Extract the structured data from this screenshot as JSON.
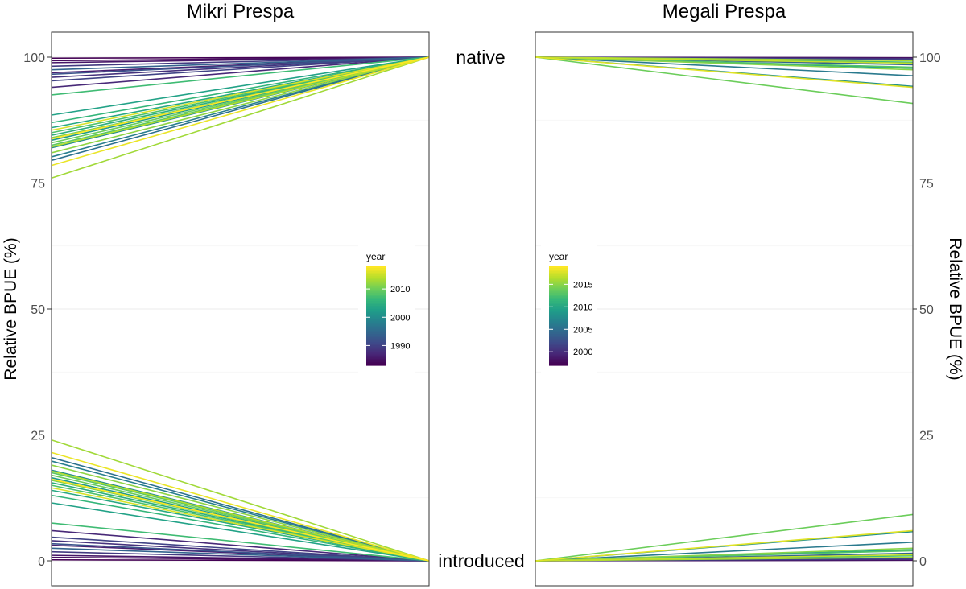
{
  "chart_data": [
    {
      "type": "line",
      "title": "Mikri Prespa",
      "ylabel": "Relative BPUE (%)",
      "ylim": [
        0,
        100
      ],
      "y_ticks": [
        "0",
        "25",
        "50",
        "75",
        "100"
      ],
      "x_categories": [
        "native",
        "introduced"
      ],
      "legend": {
        "title": "year",
        "ticks": [
          "2010",
          "2000",
          "1990"
        ],
        "range": [
          1983,
          2018
        ],
        "position": "center-right"
      },
      "series": [
        {
          "year": 1983,
          "native_start": 99.8,
          "introduced_start": 0.2
        },
        {
          "year": 1984,
          "native_start": 99.3,
          "introduced_start": 0.7
        },
        {
          "year": 1985,
          "native_start": 98.9,
          "introduced_start": 1.1
        },
        {
          "year": 1986,
          "native_start": 96.9,
          "introduced_start": 3.1
        },
        {
          "year": 1987,
          "native_start": 94.0,
          "introduced_start": 6.0
        },
        {
          "year": 1988,
          "native_start": 96.0,
          "introduced_start": 4.0
        },
        {
          "year": 1989,
          "native_start": 98.2,
          "introduced_start": 1.8
        },
        {
          "year": 1990,
          "native_start": 95.3,
          "introduced_start": 4.7
        },
        {
          "year": 1992,
          "native_start": 96.6,
          "introduced_start": 3.4
        },
        {
          "year": 1994,
          "native_start": 97.5,
          "introduced_start": 2.5
        },
        {
          "year": 1996,
          "native_start": 79.5,
          "introduced_start": 20.5
        },
        {
          "year": 1998,
          "native_start": 80.2,
          "introduced_start": 19.8
        },
        {
          "year": 2000,
          "native_start": 82.0,
          "introduced_start": 18.0
        },
        {
          "year": 2002,
          "native_start": 83.5,
          "introduced_start": 16.5
        },
        {
          "year": 2003,
          "native_start": 88.5,
          "introduced_start": 11.5
        },
        {
          "year": 2004,
          "native_start": 86.0,
          "introduced_start": 14.0
        },
        {
          "year": 2005,
          "native_start": 84.5,
          "introduced_start": 15.5
        },
        {
          "year": 2006,
          "native_start": 87.0,
          "introduced_start": 13.0
        },
        {
          "year": 2007,
          "native_start": 92.5,
          "introduced_start": 7.5
        },
        {
          "year": 2008,
          "native_start": 85.0,
          "introduced_start": 15.0
        },
        {
          "year": 2009,
          "native_start": 82.5,
          "introduced_start": 17.5
        },
        {
          "year": 2010,
          "native_start": 83.0,
          "introduced_start": 17.0
        },
        {
          "year": 2011,
          "native_start": 84.0,
          "introduced_start": 16.0
        },
        {
          "year": 2012,
          "native_start": 81.0,
          "introduced_start": 19.0
        },
        {
          "year": 2013,
          "native_start": 76.0,
          "introduced_start": 24.0
        },
        {
          "year": 2014,
          "native_start": 82.2,
          "introduced_start": 17.8
        },
        {
          "year": 2016,
          "native_start": 85.5,
          "introduced_start": 14.5
        },
        {
          "year": 2017,
          "native_start": 78.5,
          "introduced_start": 21.5
        },
        {
          "year": 2018,
          "native_start": 83.8,
          "introduced_start": 16.2
        }
      ]
    },
    {
      "type": "line",
      "title": "Megali Prespa",
      "ylabel": "Relative BPUE (%)",
      "ylim": [
        0,
        100
      ],
      "y_ticks": [
        "0",
        "25",
        "50",
        "75",
        "100"
      ],
      "x_categories": [
        "native",
        "introduced"
      ],
      "legend": {
        "title": "year",
        "ticks": [
          "2015",
          "2010",
          "2005",
          "2000"
        ],
        "range": [
          1997,
          2019
        ],
        "position": "center-left"
      },
      "series": [
        {
          "year": 1998,
          "native_end": 99.9,
          "introduced_end": 0.1
        },
        {
          "year": 2000,
          "native_end": 99.7,
          "introduced_end": 0.3
        },
        {
          "year": 2002,
          "native_end": 99.5,
          "introduced_end": 0.5
        },
        {
          "year": 2004,
          "native_end": 98.5,
          "introduced_end": 1.5
        },
        {
          "year": 2006,
          "native_end": 96.3,
          "introduced_end": 3.7
        },
        {
          "year": 2008,
          "native_end": 94.2,
          "introduced_end": 5.8
        },
        {
          "year": 2010,
          "native_end": 97.8,
          "introduced_end": 2.2
        },
        {
          "year": 2012,
          "native_end": 99.0,
          "introduced_end": 1.0
        },
        {
          "year": 2013,
          "native_end": 98.0,
          "introduced_end": 2.0
        },
        {
          "year": 2014,
          "native_end": 90.8,
          "introduced_end": 9.2
        },
        {
          "year": 2015,
          "native_end": 97.5,
          "introduced_end": 2.5
        },
        {
          "year": 2016,
          "native_end": 99.3,
          "introduced_end": 0.7
        },
        {
          "year": 2017,
          "native_end": 98.8,
          "introduced_end": 1.2
        },
        {
          "year": 2018,
          "native_end": 94.0,
          "introduced_end": 6.0
        }
      ]
    }
  ]
}
